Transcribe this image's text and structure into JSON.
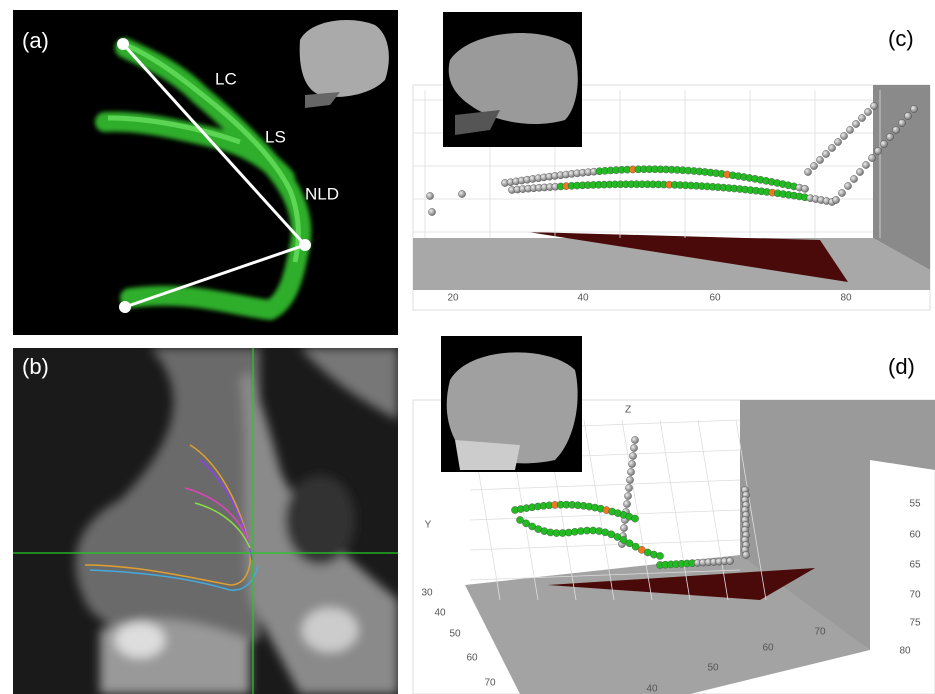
{
  "panels": [
    {
      "label": "(a)",
      "annotations": [
        "LC",
        "LS",
        "NLD"
      ]
    },
    {
      "label": "(b)"
    },
    {
      "label": "(c)",
      "x_ticks": [
        20,
        40,
        60,
        80
      ]
    },
    {
      "label": "(d)",
      "axis_labels": [
        "Y",
        "Z"
      ],
      "left_ticks": [
        30,
        40,
        50,
        60,
        70
      ],
      "bottom_ticks": [
        40,
        50,
        60,
        70
      ],
      "right_ticks": [
        55,
        60,
        65,
        70,
        75,
        80
      ]
    }
  ]
}
